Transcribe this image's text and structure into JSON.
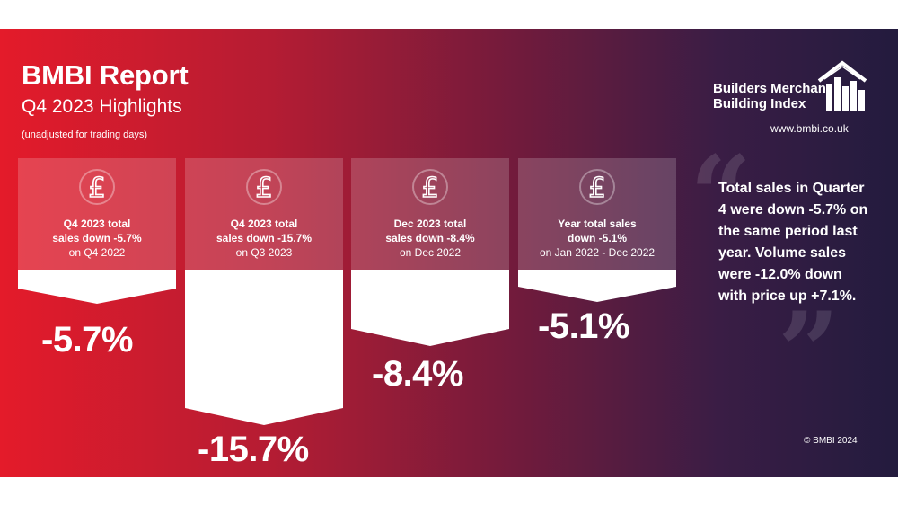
{
  "header": {
    "title": "BMBI Report",
    "subtitle": "Q4 2023 Highlights",
    "note": "(unadjusted for trading days)"
  },
  "logo": {
    "line1": "Builders Merchant",
    "line2": "Building Index",
    "icon": "house-bar-chart-icon",
    "url": "www.bmbi.co.uk"
  },
  "cards": [
    {
      "icon": "pound-icon",
      "line1": "Q4 2023 total",
      "line2": "sales down -5.7%",
      "line3": "on Q4 2022",
      "value": "-5.7%"
    },
    {
      "icon": "pound-icon",
      "line1": "Q4 2023 total",
      "line2": "sales down -15.7%",
      "line3": "on Q3 2023",
      "value": "-15.7%"
    },
    {
      "icon": "pound-icon",
      "line1": "Dec 2023 total",
      "line2": "sales down -8.4%",
      "line3": "on Dec 2022",
      "value": "-8.4%"
    },
    {
      "icon": "pound-icon",
      "line1": "Year total sales",
      "line2": "down -5.1%",
      "line3": "on Jan 2022 - Dec 2022",
      "value": "-5.1%"
    }
  ],
  "quote": {
    "text": "Total sales in Quarter 4 were down -5.7% on the same period last year. Volume sales were -12.0% down with price up +7.1%."
  },
  "footer": {
    "copyright": "© BMBI 2024"
  },
  "colors": {
    "gradient_start": "#e41b2a",
    "gradient_end": "#231b3e",
    "card_fill": "rgba(255,255,255,0.18)",
    "arrow_fill": "#ffffff"
  }
}
